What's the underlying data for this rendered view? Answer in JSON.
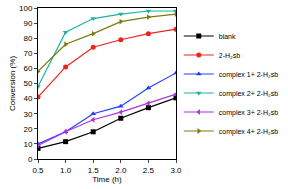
{
  "chart_data": {
    "type": "line",
    "x_label": "Time (h)",
    "y_label": "Conversion (%)",
    "x": [
      0.5,
      1.0,
      1.5,
      2.0,
      2.5,
      3.0
    ],
    "series": [
      {
        "name": "blank",
        "color": "#000000",
        "marker": "square",
        "values": [
          7,
          11.5,
          18,
          27,
          34,
          40.5
        ]
      },
      {
        "name": "2-H₂sb",
        "color": "#e8261e",
        "marker": "circle",
        "values": [
          41,
          61,
          74,
          79,
          83,
          86
        ]
      },
      {
        "name": "complex 1+ 2-H₂sb",
        "color": "#2040ff",
        "marker": "triangle-up",
        "values": [
          10,
          18,
          30,
          35,
          47,
          57
        ]
      },
      {
        "name": "complex 2+ 2-H₂sb",
        "color": "#1fb2a0",
        "marker": "triangle-down",
        "values": [
          48,
          84,
          93,
          96,
          98,
          98
        ]
      },
      {
        "name": "complex 3+ 2-H₂sb",
        "color": "#b030e0",
        "marker": "triangle-left",
        "values": [
          9,
          18,
          26,
          31,
          37,
          43
        ]
      },
      {
        "name": "complex 4+ 2-H₂sb",
        "color": "#7a7a10",
        "marker": "triangle-right",
        "values": [
          58,
          76,
          83,
          91,
          94,
          96
        ]
      }
    ],
    "xlim": [
      0.5,
      3.0
    ],
    "xticks": [
      {
        "value": 0.5,
        "label": "0.5"
      },
      {
        "value": 1,
        "label": "1.0"
      },
      {
        "value": 1.5,
        "label": "1.5"
      },
      {
        "value": 2,
        "label": "2.0"
      },
      {
        "value": 2.5,
        "label": "2.5"
      },
      {
        "value": 3,
        "label": "3.0"
      }
    ],
    "ylim": [
      0,
      100
    ],
    "yticks": [
      0,
      10,
      20,
      30,
      40,
      50,
      60,
      70,
      80,
      90,
      100
    ],
    "grid": false,
    "legend": "right"
  }
}
